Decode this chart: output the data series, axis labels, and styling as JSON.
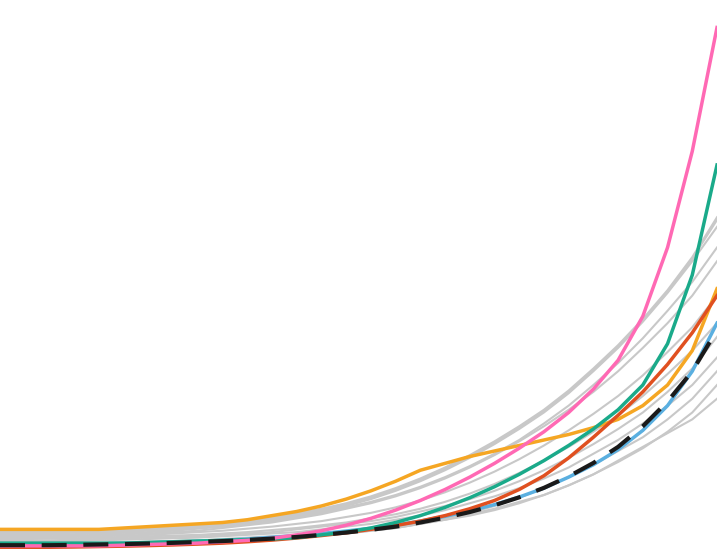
{
  "n_points": 30,
  "background_color": "#ffffff",
  "gray_lines": [
    [
      0.5,
      0.5,
      0.5,
      0.5,
      0.5,
      0.55,
      0.6,
      0.65,
      0.7,
      0.75,
      0.8,
      0.9,
      1.0,
      1.1,
      1.2,
      1.4,
      1.6,
      1.9,
      2.2,
      2.6,
      3.0,
      3.5,
      4.0,
      4.7,
      5.5,
      6.5,
      7.5,
      8.5,
      9.5,
      11.0
    ],
    [
      0.4,
      0.4,
      0.4,
      0.45,
      0.5,
      0.55,
      0.6,
      0.65,
      0.7,
      0.8,
      0.9,
      1.0,
      1.1,
      1.2,
      1.35,
      1.5,
      1.7,
      2.0,
      2.3,
      2.7,
      3.2,
      3.8,
      4.5,
      5.3,
      6.2,
      7.2,
      8.2,
      9.5,
      11.0,
      13.0
    ],
    [
      0.3,
      0.3,
      0.35,
      0.4,
      0.45,
      0.5,
      0.55,
      0.6,
      0.65,
      0.7,
      0.8,
      0.9,
      1.0,
      1.1,
      1.2,
      1.4,
      1.6,
      1.9,
      2.2,
      2.5,
      2.9,
      3.4,
      4.0,
      4.7,
      5.5,
      6.4,
      7.4,
      8.6,
      10.0,
      12.0
    ],
    [
      0.6,
      0.6,
      0.6,
      0.65,
      0.7,
      0.75,
      0.8,
      0.85,
      0.9,
      1.0,
      1.1,
      1.2,
      1.3,
      1.5,
      1.7,
      1.9,
      2.2,
      2.5,
      2.9,
      3.4,
      3.9,
      4.5,
      5.2,
      6.0,
      7.0,
      8.0,
      9.2,
      10.5,
      12.0,
      14.0
    ],
    [
      0.7,
      0.7,
      0.7,
      0.75,
      0.8,
      0.85,
      0.9,
      0.95,
      1.0,
      1.1,
      1.2,
      1.3,
      1.5,
      1.7,
      1.9,
      2.1,
      2.4,
      2.8,
      3.2,
      3.7,
      4.3,
      5.0,
      5.8,
      6.7,
      7.7,
      8.8,
      10.0,
      11.5,
      13.2,
      15.5
    ],
    [
      0.8,
      0.8,
      0.82,
      0.85,
      0.9,
      0.95,
      1.0,
      1.05,
      1.1,
      1.2,
      1.3,
      1.45,
      1.6,
      1.8,
      2.0,
      2.3,
      2.6,
      3.0,
      3.5,
      4.1,
      4.8,
      5.6,
      6.5,
      7.5,
      8.6,
      9.8,
      11.2,
      12.8,
      14.5,
      16.5
    ],
    [
      0.9,
      0.9,
      0.92,
      0.95,
      1.0,
      1.05,
      1.1,
      1.2,
      1.3,
      1.4,
      1.55,
      1.7,
      1.9,
      2.1,
      2.4,
      2.7,
      3.1,
      3.6,
      4.2,
      4.9,
      5.7,
      6.6,
      7.6,
      8.7,
      9.9,
      11.2,
      12.7,
      14.4,
      16.2,
      18.5
    ],
    [
      1.0,
      1.0,
      1.0,
      1.05,
      1.1,
      1.15,
      1.2,
      1.3,
      1.4,
      1.6,
      1.8,
      2.0,
      2.3,
      2.6,
      3.0,
      3.4,
      3.9,
      4.5,
      5.2,
      6.0,
      6.9,
      7.9,
      9.0,
      10.2,
      11.5,
      13.0,
      14.7,
      16.5,
      18.5,
      21.0
    ],
    [
      1.1,
      1.1,
      1.1,
      1.15,
      1.2,
      1.25,
      1.3,
      1.4,
      1.55,
      1.7,
      1.9,
      2.1,
      2.4,
      2.7,
      3.1,
      3.5,
      4.0,
      4.6,
      5.3,
      6.1,
      7.0,
      8.0,
      9.2,
      10.5,
      12.0,
      13.6,
      15.4,
      17.4,
      19.5,
      22.0
    ],
    [
      1.2,
      1.2,
      1.22,
      1.25,
      1.3,
      1.35,
      1.4,
      1.5,
      1.65,
      1.8,
      2.0,
      2.2,
      2.5,
      2.8,
      3.2,
      3.7,
      4.3,
      5.0,
      5.8,
      6.7,
      7.7,
      8.8,
      10.0,
      11.4,
      13.0,
      14.7,
      16.6,
      18.7,
      21.0,
      23.5
    ],
    [
      1.3,
      1.3,
      1.3,
      1.32,
      1.35,
      1.4,
      1.5,
      1.6,
      1.75,
      1.9,
      2.1,
      2.3,
      2.6,
      2.9,
      3.3,
      3.8,
      4.4,
      5.1,
      5.9,
      6.8,
      7.8,
      8.9,
      10.1,
      11.5,
      13.1,
      14.8,
      16.7,
      18.8,
      21.2,
      24.0
    ],
    [
      1.4,
      1.4,
      1.4,
      1.42,
      1.45,
      1.5,
      1.6,
      1.7,
      1.85,
      2.0,
      2.2,
      2.4,
      2.7,
      3.0,
      3.4,
      3.9,
      4.5,
      5.2,
      6.0,
      6.9,
      7.9,
      9.0,
      10.2,
      11.6,
      13.2,
      14.9,
      16.8,
      18.9,
      21.3,
      24.2
    ]
  ],
  "orange_line": [
    1.5,
    1.5,
    1.5,
    1.5,
    1.5,
    1.6,
    1.7,
    1.8,
    1.9,
    2.0,
    2.2,
    2.5,
    2.8,
    3.2,
    3.7,
    4.3,
    5.0,
    5.8,
    6.3,
    6.8,
    7.2,
    7.6,
    8.0,
    8.4,
    8.9,
    9.5,
    10.5,
    12.0,
    14.5,
    19.0
  ],
  "teal_line": [
    0.5,
    0.5,
    0.5,
    0.5,
    0.5,
    0.5,
    0.55,
    0.6,
    0.65,
    0.7,
    0.75,
    0.8,
    0.9,
    1.1,
    1.3,
    1.6,
    2.0,
    2.5,
    3.1,
    3.8,
    4.6,
    5.5,
    6.5,
    7.6,
    8.8,
    10.2,
    12.0,
    15.0,
    20.0,
    28.0
  ],
  "pink_line": [
    0.3,
    0.3,
    0.3,
    0.3,
    0.3,
    0.35,
    0.4,
    0.45,
    0.5,
    0.6,
    0.7,
    0.85,
    1.1,
    1.4,
    1.8,
    2.3,
    2.9,
    3.6,
    4.4,
    5.3,
    6.3,
    7.4,
    8.6,
    10.0,
    11.7,
    13.8,
    17.0,
    22.0,
    29.0,
    38.0
  ],
  "blue_line": [
    0.4,
    0.4,
    0.4,
    0.42,
    0.45,
    0.48,
    0.52,
    0.57,
    0.63,
    0.7,
    0.8,
    0.92,
    1.05,
    1.2,
    1.38,
    1.58,
    1.82,
    2.1,
    2.45,
    2.85,
    3.3,
    3.85,
    4.5,
    5.3,
    6.2,
    7.3,
    8.7,
    10.5,
    13.0,
    16.5
  ],
  "red_line": [
    0.2,
    0.2,
    0.2,
    0.22,
    0.25,
    0.28,
    0.32,
    0.37,
    0.43,
    0.5,
    0.6,
    0.72,
    0.87,
    1.05,
    1.25,
    1.5,
    1.78,
    2.1,
    2.5,
    3.0,
    3.6,
    4.4,
    5.4,
    6.7,
    8.2,
    9.8,
    11.5,
    13.5,
    15.8,
    18.5
  ],
  "black_dashed": [
    0.35,
    0.35,
    0.35,
    0.37,
    0.4,
    0.43,
    0.47,
    0.52,
    0.58,
    0.65,
    0.73,
    0.83,
    0.95,
    1.1,
    1.27,
    1.47,
    1.7,
    2.0,
    2.35,
    2.76,
    3.25,
    3.83,
    4.52,
    5.35,
    6.33,
    7.5,
    9.0,
    10.8,
    13.0,
    16.0
  ],
  "gray_color": "#c8c8c8",
  "orange_color": "#f5a623",
  "teal_color": "#1aaa8a",
  "pink_color": "#ff69b4",
  "blue_color": "#5aafe0",
  "red_color": "#e05020",
  "black_dashed_color": "#1a1a1a",
  "linewidth_gray": 1.5,
  "linewidth_colored": 2.5,
  "linewidth_dashed": 3.0,
  "xlim": [
    0,
    29
  ],
  "ylim": [
    0,
    40
  ]
}
